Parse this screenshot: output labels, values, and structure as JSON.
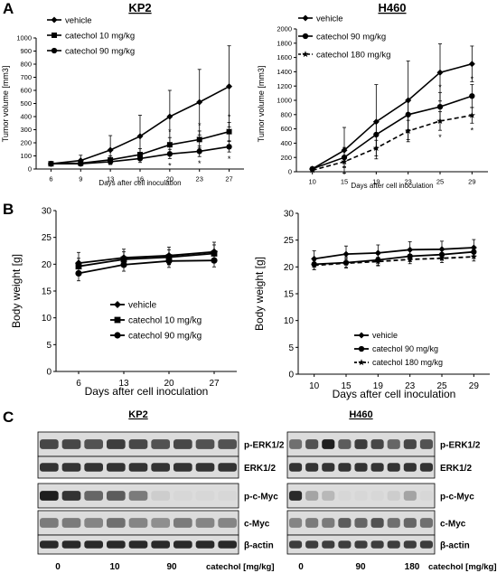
{
  "panel_letters": [
    "A",
    "B",
    "C"
  ],
  "chart_data": [
    {
      "type": "line",
      "title": "KP2",
      "xlabel": "Days after cell inoculation",
      "ylabel": "Tumor volume [mm3]",
      "x": [
        6,
        9,
        13,
        16,
        20,
        23,
        27
      ],
      "ylim": [
        0,
        1000
      ],
      "yticks": [
        0,
        100,
        200,
        300,
        400,
        500,
        600,
        700,
        800,
        900,
        1000
      ],
      "legend_position": "top-left",
      "series": [
        {
          "name": "vehicle",
          "marker": "diamond",
          "dash": "solid",
          "values": [
            40,
            65,
            145,
            250,
            400,
            510,
            630
          ],
          "err": [
            15,
            40,
            110,
            160,
            200,
            250,
            310
          ]
        },
        {
          "name": "catechol 10 mg/kg",
          "marker": "square",
          "dash": "solid",
          "values": [
            40,
            45,
            70,
            110,
            185,
            225,
            285
          ],
          "err": [
            10,
            20,
            30,
            45,
            55,
            65,
            70
          ]
        },
        {
          "name": "catechol 90 mg/kg",
          "marker": "circle",
          "dash": "solid",
          "values": [
            40,
            40,
            55,
            80,
            115,
            135,
            170
          ],
          "err": [
            10,
            15,
            20,
            30,
            35,
            40,
            40
          ]
        }
      ],
      "annotations": [
        "*",
        "*",
        "*",
        "*",
        "*",
        "*"
      ]
    },
    {
      "type": "line",
      "title": "H460",
      "xlabel": "Days after cell inoculation",
      "ylabel": "Tumor volume [mm3]",
      "x": [
        10,
        15,
        19,
        23,
        25,
        29
      ],
      "ylim": [
        0,
        2000
      ],
      "yticks": [
        0,
        200,
        400,
        600,
        800,
        1000,
        1200,
        1400,
        1600,
        1800,
        2000
      ],
      "legend_position": "top-left",
      "series": [
        {
          "name": "vehicle",
          "marker": "diamond",
          "dash": "solid",
          "values": [
            40,
            300,
            700,
            1000,
            1390,
            1510
          ],
          "err": [
            10,
            320,
            520,
            550,
            400,
            250
          ]
        },
        {
          "name": "catechol 90 mg/kg",
          "marker": "circle",
          "dash": "solid",
          "values": [
            40,
            200,
            520,
            800,
            910,
            1060
          ],
          "err": [
            10,
            140,
            190,
            210,
            200,
            160
          ]
        },
        {
          "name": "catechol 180 mg/kg",
          "marker": "star",
          "dash": "dashed",
          "values": [
            20,
            140,
            330,
            570,
            710,
            790
          ],
          "err": [
            5,
            70,
            110,
            150,
            130,
            110
          ]
        }
      ],
      "annotations": [
        "*",
        "*",
        "*",
        "*"
      ]
    },
    {
      "type": "line",
      "title": "",
      "xlabel": "Days after cell inoculation",
      "ylabel": "Body weight [g]",
      "x": [
        6,
        13,
        20,
        27
      ],
      "ylim": [
        0,
        30
      ],
      "yticks": [
        0,
        5,
        10,
        15,
        20,
        25,
        30
      ],
      "legend_position": "bottom-right",
      "series": [
        {
          "name": "vehicle",
          "marker": "diamond",
          "dash": "solid",
          "values": [
            20.2,
            21.2,
            21.6,
            22.3
          ],
          "err": [
            2.0,
            1.6,
            1.6,
            1.8
          ]
        },
        {
          "name": "catechol 10 mg/kg",
          "marker": "square",
          "dash": "solid",
          "values": [
            19.6,
            20.9,
            21.3,
            22.0
          ],
          "err": [
            1.5,
            1.4,
            1.4,
            1.6
          ]
        },
        {
          "name": "catechol 90 mg/kg",
          "marker": "circle",
          "dash": "solid",
          "values": [
            18.3,
            19.9,
            20.6,
            20.7
          ],
          "err": [
            1.4,
            1.2,
            1.2,
            1.2
          ]
        }
      ]
    },
    {
      "type": "line",
      "title": "",
      "xlabel": "Days after cell inoculation",
      "ylabel": "Body weight [g]",
      "x": [
        10,
        15,
        19,
        23,
        25,
        29
      ],
      "ylim": [
        0,
        30
      ],
      "yticks": [
        0,
        5,
        10,
        15,
        20,
        25,
        30
      ],
      "legend_position": "bottom-right",
      "series": [
        {
          "name": "vehicle",
          "marker": "diamond",
          "dash": "solid",
          "values": [
            21.5,
            22.4,
            22.6,
            23.2,
            23.3,
            23.6
          ],
          "err": [
            1.5,
            1.5,
            1.5,
            1.5,
            1.5,
            1.5
          ]
        },
        {
          "name": "catechol 90 mg/kg",
          "marker": "circle",
          "dash": "solid",
          "values": [
            20.5,
            20.8,
            21.3,
            22.0,
            22.3,
            22.8
          ],
          "err": [
            1.0,
            1.0,
            1.0,
            1.0,
            1.0,
            1.0
          ]
        },
        {
          "name": "catechol 180 mg/kg",
          "marker": "star",
          "dash": "dashed",
          "values": [
            20.3,
            20.7,
            21.0,
            21.4,
            21.6,
            21.9
          ],
          "err": [
            0.8,
            0.8,
            0.8,
            0.8,
            0.8,
            0.8
          ]
        }
      ]
    }
  ],
  "blots": [
    {
      "title": "KP2",
      "proteins": [
        "p-ERK1/2",
        "ERK1/2",
        "p-c-Myc",
        "c-Myc",
        "β-actin"
      ],
      "lane_count": 9,
      "doses": [
        "0",
        "10",
        "90"
      ],
      "dose_label": "catechol [mg/kg]",
      "intensity": [
        [
          0.75,
          0.75,
          0.7,
          0.8,
          0.75,
          0.7,
          0.75,
          0.7,
          0.7
        ],
        [
          0.85,
          0.85,
          0.85,
          0.85,
          0.85,
          0.85,
          0.85,
          0.85,
          0.85
        ],
        [
          0.95,
          0.85,
          0.6,
          0.65,
          0.5,
          0.1,
          0.05,
          0.05,
          0.05
        ],
        [
          0.5,
          0.5,
          0.45,
          0.55,
          0.45,
          0.4,
          0.5,
          0.45,
          0.45
        ],
        [
          0.9,
          0.9,
          0.9,
          0.9,
          0.9,
          0.9,
          0.9,
          0.9,
          0.9
        ]
      ]
    },
    {
      "title": "H460",
      "proteins": [
        "p-ERK1/2",
        "ERK1/2",
        "p-c-Myc",
        "c-Myc",
        "β-actin"
      ],
      "lane_count": 9,
      "doses": [
        "0",
        "90",
        "180"
      ],
      "dose_label": "catechol [mg/kg]",
      "intensity": [
        [
          0.55,
          0.7,
          0.95,
          0.65,
          0.8,
          0.75,
          0.6,
          0.75,
          0.7
        ],
        [
          0.85,
          0.85,
          0.85,
          0.85,
          0.85,
          0.85,
          0.85,
          0.85,
          0.85
        ],
        [
          0.9,
          0.3,
          0.2,
          0.05,
          0.05,
          0.05,
          0.1,
          0.3,
          0.05
        ],
        [
          0.45,
          0.5,
          0.5,
          0.65,
          0.6,
          0.7,
          0.55,
          0.6,
          0.55
        ],
        [
          0.8,
          0.8,
          0.8,
          0.8,
          0.8,
          0.8,
          0.8,
          0.8,
          0.8
        ]
      ]
    }
  ]
}
